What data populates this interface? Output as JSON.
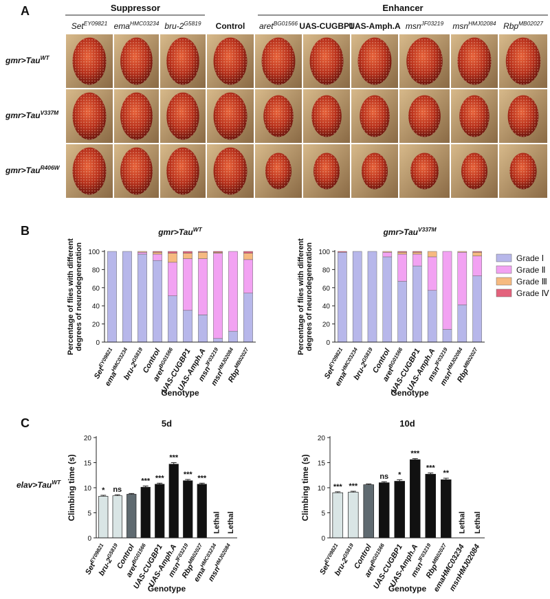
{
  "panel_labels": [
    "A",
    "B",
    "C"
  ],
  "photo_grid": {
    "suppressor_label": "Suppressor",
    "enhancer_label": "Enhancer",
    "columns": [
      {
        "name": "Set",
        "sup": "EY09821"
      },
      {
        "name": "ema",
        "sup": "HMC03234"
      },
      {
        "name": "bru-2",
        "sup": "G5819"
      },
      {
        "name": "Control"
      },
      {
        "name": "aret",
        "sup": "BG01566"
      },
      {
        "name": "UAS-CUGBP1"
      },
      {
        "name": "UAS-Amph.A"
      },
      {
        "name": "msn",
        "sup": "JF03219"
      },
      {
        "name": "msn",
        "sup": "HMJ02084"
      },
      {
        "name": "Rbp",
        "sup": "MB02027"
      }
    ],
    "rows": [
      {
        "name": "gmr>Tau",
        "sup": "WT"
      },
      {
        "name": "gmr>Tau",
        "sup": "V337M"
      },
      {
        "name": "gmr>Tau",
        "sup": "R406W"
      }
    ]
  },
  "row_label_c": {
    "name": "elav>Tau",
    "sup": "WT"
  },
  "chart_data": [
    {
      "type": "stacked_bar",
      "title": {
        "name": "gmr>Tau",
        "sup": "WT"
      },
      "ylabel": [
        "Percentage of flies with different",
        "degrees of neurodegeneration"
      ],
      "xlabel": "Genotype",
      "categories": [
        "Set",
        "ema",
        "bru-2",
        "Control",
        "aret",
        "UAS-CUGBP1",
        "UAS-Amph.A",
        "msn",
        "msn",
        "Rbp"
      ],
      "superscripts": [
        "EY09821",
        "HMC03234",
        "G5819",
        null,
        "BG01566",
        null,
        null,
        "JF03219",
        "HMJ02084",
        "MB02027"
      ],
      "ylim": [
        0,
        100
      ],
      "yticks": [
        0,
        20,
        40,
        60,
        80,
        100
      ],
      "series": [
        {
          "color": "#b7b7ea",
          "values": [
            100,
            100,
            97,
            90,
            51,
            35,
            30,
            4,
            12,
            54
          ]
        },
        {
          "color": "#f2a2f2",
          "values": [
            0,
            0,
            2,
            7,
            37,
            57,
            62,
            94,
            88,
            37
          ]
        },
        {
          "color": "#f6ba80",
          "values": [
            0,
            0,
            1,
            2,
            10,
            6,
            7,
            1,
            0,
            7
          ]
        },
        {
          "color": "#e3627c",
          "values": [
            0,
            0,
            0,
            1,
            2,
            2,
            1,
            1,
            0,
            2
          ]
        }
      ]
    },
    {
      "type": "stacked_bar",
      "title": {
        "name": "gmr>Tau",
        "sup": "V337M"
      },
      "ylabel": [
        "Percentage of flies with different",
        "degrees of neurodegeneration"
      ],
      "xlabel": "Genotype",
      "categories": [
        "Set",
        "ema",
        "bru-2",
        "Control",
        "aret",
        "UAS-CUGBP1",
        "UAS-Amph.A",
        "msn",
        "msn",
        "Rbp"
      ],
      "superscripts": [
        "EY09821",
        "HMC03234",
        "G5819",
        null,
        "BG01566",
        null,
        null,
        "JF03219",
        "HMJ02084",
        "MB02027"
      ],
      "ylim": [
        0,
        100
      ],
      "yticks": [
        0,
        20,
        40,
        60,
        80,
        100
      ],
      "legend": "right",
      "series": [
        {
          "name": "Grade Ⅰ",
          "color": "#b7b7ea",
          "values": [
            99,
            100,
            100,
            94,
            67,
            84,
            57,
            14,
            41,
            73
          ]
        },
        {
          "name": "Grade Ⅱ",
          "color": "#f2a2f2",
          "values": [
            0,
            0,
            0,
            5,
            30,
            13,
            37,
            86,
            58,
            22
          ]
        },
        {
          "name": "Grade Ⅲ",
          "color": "#f6ba80",
          "values": [
            0,
            0,
            0,
            1,
            2,
            2,
            6,
            0,
            1,
            4
          ]
        },
        {
          "name": "Grade Ⅳ",
          "color": "#e3627c",
          "values": [
            1,
            0,
            0,
            0,
            1,
            1,
            0,
            0,
            0,
            1
          ]
        }
      ]
    },
    {
      "type": "bar",
      "title": "5d",
      "ylabel": "Climbing time (s)",
      "xlabel": "Genotype",
      "categories": [
        "Set",
        "bru-2",
        "Control",
        "aret",
        "UAS-CUGBP1",
        "UAS-Amph.A",
        "msn",
        "Rbp",
        "ema",
        "msn"
      ],
      "superscripts": [
        "EY09821",
        "G5819",
        null,
        "BG01566",
        null,
        null,
        "JF03219",
        "MB02027",
        "HMC03234",
        "HMJ02084"
      ],
      "values": [
        8.3,
        8.4,
        8.7,
        10.1,
        10.7,
        14.7,
        11.4,
        10.7,
        null,
        null
      ],
      "errors": [
        0.2,
        0.2,
        0.15,
        0.25,
        0.2,
        0.3,
        0.25,
        0.2,
        null,
        null
      ],
      "value_labels": [
        null,
        null,
        null,
        null,
        null,
        null,
        null,
        null,
        "Lethal",
        "Lethal"
      ],
      "annotations": [
        "*",
        "ns",
        null,
        "***",
        "***",
        "***",
        "***",
        "***",
        null,
        null
      ],
      "colors": [
        "#d9e5e5",
        "#d9e5e5",
        "#5f6a70",
        "#111111",
        "#111111",
        "#111111",
        "#111111",
        "#111111",
        "#111111",
        "#111111"
      ],
      "ylim": [
        0,
        20
      ],
      "yticks": [
        0,
        5,
        10,
        15,
        20
      ]
    },
    {
      "type": "bar",
      "title": "10d",
      "ylabel": "Climbing time (s)",
      "xlabel": "Genotype",
      "categories": [
        "Set",
        "bru-2",
        "Control",
        "aret",
        "UAS-CUGBP1",
        "UAS-Amph.A",
        "msn",
        "Rbp",
        "emaHMC03234",
        "msnHMJ02084"
      ],
      "superscripts": [
        "EY09821",
        "G5819",
        null,
        "BG01566",
        null,
        null,
        "JF03219",
        "MB02027",
        null,
        null
      ],
      "values": [
        9.0,
        9.1,
        10.6,
        11.0,
        11.3,
        15.6,
        12.7,
        11.6,
        null,
        null
      ],
      "errors": [
        0.2,
        0.2,
        0.15,
        0.2,
        0.3,
        0.2,
        0.25,
        0.3,
        null,
        null
      ],
      "value_labels": [
        null,
        null,
        null,
        null,
        null,
        null,
        null,
        null,
        "Lethal",
        "Lethal"
      ],
      "annotations": [
        "***",
        "***",
        null,
        "ns",
        "*",
        "***",
        "***",
        "**",
        null,
        null
      ],
      "colors": [
        "#d9e5e5",
        "#d9e5e5",
        "#5f6a70",
        "#111111",
        "#111111",
        "#111111",
        "#111111",
        "#111111",
        "#111111",
        "#111111"
      ],
      "ylim": [
        0,
        20
      ],
      "yticks": [
        0,
        5,
        10,
        15,
        20
      ]
    }
  ]
}
